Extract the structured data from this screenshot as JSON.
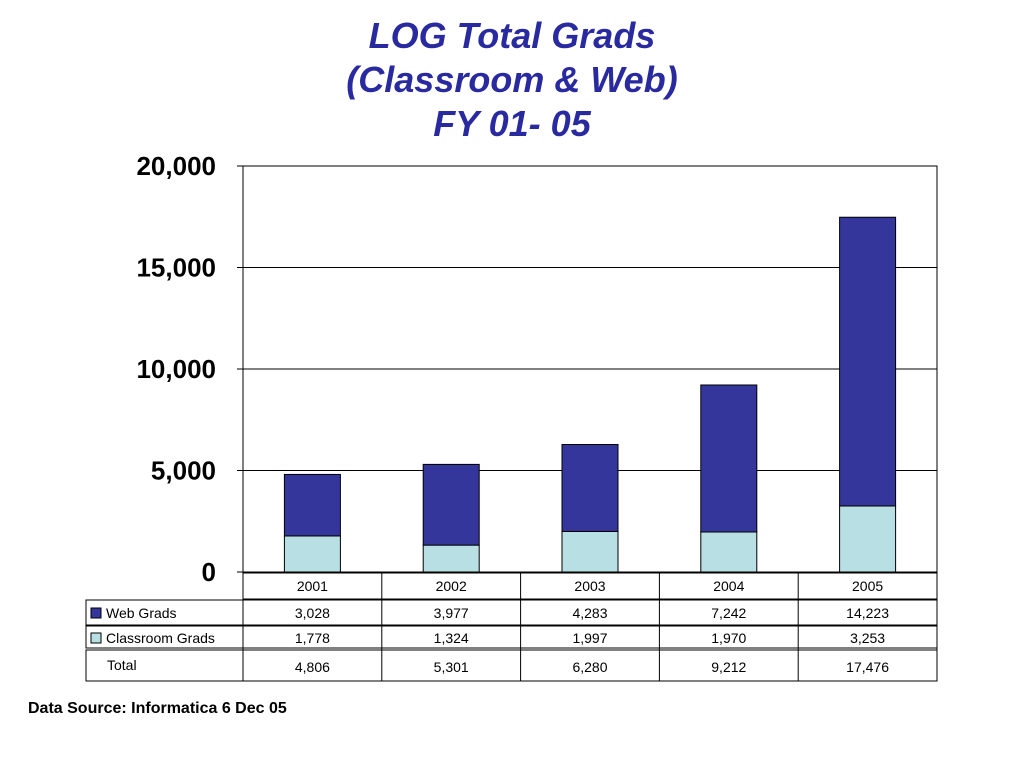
{
  "title_lines": [
    "LOG Total Grads",
    "(Classroom & Web)",
    "FY 01- 05"
  ],
  "source": "Data Source:  Informatica 6 Dec 05",
  "colors": {
    "web": "#35369c",
    "classroom": "#b8dfe3",
    "title": "#2a2aa0"
  },
  "chart_data": {
    "type": "bar",
    "stacked": true,
    "categories": [
      "2001",
      "2002",
      "2003",
      "2004",
      "2005"
    ],
    "series": [
      {
        "name": "Classroom Grads",
        "values": [
          1778,
          1324,
          1997,
          1970,
          3253
        ],
        "labels": [
          "1,778",
          "1,324",
          "1,997",
          "1,970",
          "3,253"
        ]
      },
      {
        "name": "Web Grads",
        "values": [
          3028,
          3977,
          4283,
          7242,
          14223
        ],
        "labels": [
          "3,028",
          "3,977",
          "4,283",
          "7,242",
          "14,223"
        ]
      }
    ],
    "totals": {
      "name": "Total",
      "values": [
        4806,
        5301,
        6280,
        9212,
        17476
      ],
      "labels": [
        "4,806",
        "5,301",
        "6,280",
        "9,212",
        "17,476"
      ]
    },
    "ylim": [
      0,
      20000
    ],
    "yticks": [
      0,
      5000,
      10000,
      15000,
      20000
    ],
    "ytick_labels": [
      "0",
      "5,000",
      "10,000",
      "15,000",
      "20,000"
    ],
    "grid": true,
    "legend": "data-table"
  }
}
